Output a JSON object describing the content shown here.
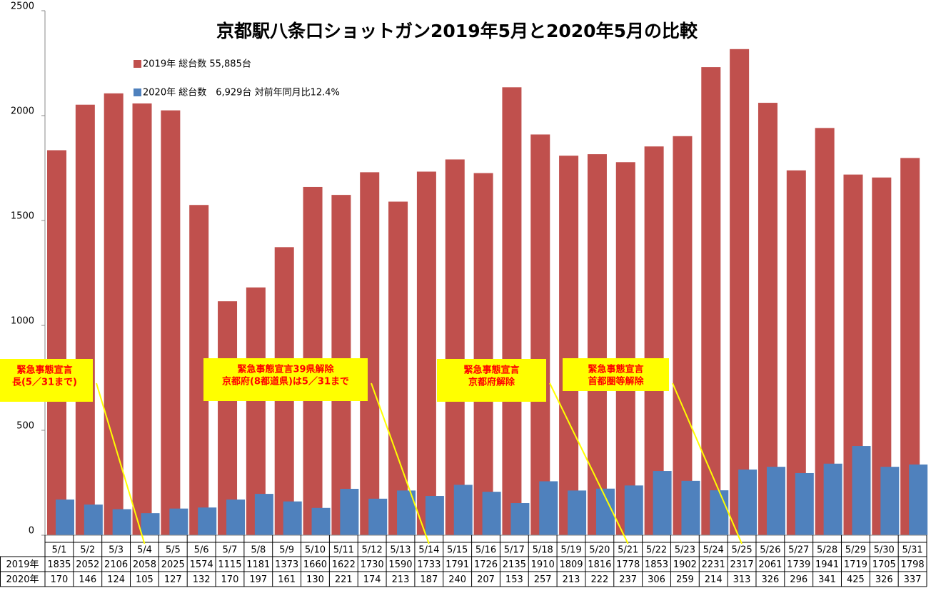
{
  "chart_data": {
    "type": "bar",
    "title": "京都駅八条口ショットガン2019年5月と2020年5月の比較",
    "categories": [
      "5/1",
      "5/2",
      "5/3",
      "5/4",
      "5/5",
      "5/6",
      "5/7",
      "5/8",
      "5/9",
      "5/10",
      "5/11",
      "5/12",
      "5/13",
      "5/14",
      "5/15",
      "5/16",
      "5/17",
      "5/18",
      "5/19",
      "5/20",
      "5/21",
      "5/22",
      "5/23",
      "5/24",
      "5/25",
      "5/26",
      "5/27",
      "5/28",
      "5/29",
      "5/30",
      "5/31"
    ],
    "series": [
      {
        "name": "2019年",
        "color": "#c0504d",
        "values": [
          1835,
          2052,
          2106,
          2058,
          2025,
          1574,
          1115,
          1181,
          1373,
          1660,
          1622,
          1730,
          1590,
          1733,
          1791,
          1726,
          2135,
          1910,
          1809,
          1816,
          1778,
          1853,
          1902,
          2231,
          2317,
          2061,
          1739,
          1941,
          1719,
          1705,
          1798
        ]
      },
      {
        "name": "2020年",
        "color": "#4f81bd",
        "values": [
          170,
          146,
          124,
          105,
          127,
          132,
          170,
          197,
          161,
          130,
          221,
          174,
          213,
          187,
          240,
          207,
          153,
          257,
          213,
          222,
          237,
          306,
          259,
          214,
          313,
          326,
          296,
          341,
          425,
          326,
          337
        ]
      }
    ],
    "legend_labels": [
      "2019年 総台数 55,885台",
      "2020年 総台数　6,929台 対前年同月比12.4%"
    ],
    "ylim": [
      0,
      2500
    ],
    "yticks": [
      0,
      500,
      1000,
      1500,
      2000,
      2500
    ],
    "annotations": [
      {
        "lines": [
          "緊急事態宣言",
          "長(5／31まで)"
        ],
        "points_to": "5/4"
      },
      {
        "lines": [
          "緊急事態宣言39県解除",
          "京都府(8都道県)は5／31まで"
        ],
        "points_to": "5/14"
      },
      {
        "lines": [
          "緊急事態宣言",
          "京都府解除"
        ],
        "points_to": "5/21"
      },
      {
        "lines": [
          "緊急事態宣言",
          "首都圏等解除"
        ],
        "points_to": "5/25"
      }
    ]
  }
}
